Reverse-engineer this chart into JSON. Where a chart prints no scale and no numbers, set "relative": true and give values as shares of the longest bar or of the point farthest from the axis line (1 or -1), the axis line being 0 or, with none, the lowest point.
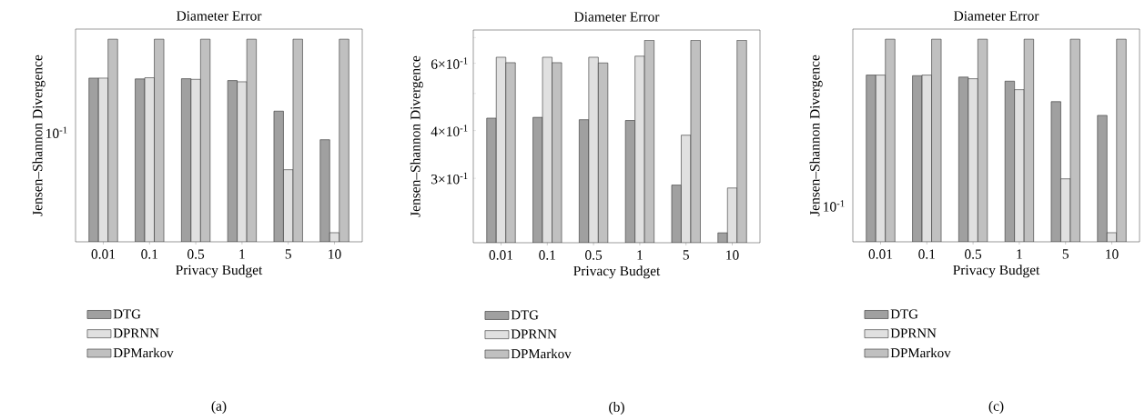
{
  "chart_data": [
    {
      "type": "bar",
      "title": "Diameter Error",
      "xlabel": "Privacy Budget",
      "ylabel": "Jensen–Shannon Divergence",
      "categories": [
        "0.01",
        "0.1",
        "0.5",
        "1",
        "5",
        "10"
      ],
      "relative": true,
      "legend": "bottom",
      "series": [
        {
          "name": "DTG",
          "color": "#a0a0a0",
          "values": [
            0.808,
            0.804,
            0.805,
            0.796,
            0.645,
            0.504
          ]
        },
        {
          "name": "DPRNN",
          "color": "#e0e0e0",
          "values": [
            0.808,
            0.81,
            0.802,
            0.79,
            0.356,
            0.045
          ]
        },
        {
          "name": "DPMarkov",
          "color": "#c0c0c0",
          "values": [
            1,
            1,
            1,
            1,
            1,
            1
          ]
        }
      ],
      "annotations": [
        "10$^{-1}$",
        "(a)"
      ]
    },
    {
      "type": "bar",
      "title": "Diameter Error",
      "xlabel": "Privacy Budget",
      "ylabel": "Jensen–Shannon Divergence",
      "categories": [
        "0.01",
        "0.1",
        "0.5",
        "1",
        "5",
        "10"
      ],
      "log": true,
      "legend": "bottom",
      "ylim": [
        0.2035,
        0.733
      ],
      "yticks": [
        {
          "value": 0.3,
          "label": "3×10$^{-1}$"
        },
        {
          "value": 0.4,
          "label": "4×10$^{-1}$"
        },
        {
          "value": 0.5,
          "label": null
        },
        {
          "value": 0.6,
          "label": "6×10$^{-1}$"
        },
        {
          "value": 0.7,
          "label": null
        }
      ],
      "series": [
        {
          "name": "DTG",
          "color": "#a0a0a0",
          "values": [
            0.431,
            0.433,
            0.427,
            0.425,
            0.288,
            0.216
          ]
        },
        {
          "name": "DPRNN",
          "color": "#e0e0e0",
          "values": [
            0.622,
            0.622,
            0.622,
            0.626,
            0.389,
            0.283
          ]
        },
        {
          "name": "DPMarkov",
          "color": "#c0c0c0",
          "values": [
            0.602,
            0.602,
            0.601,
            0.689,
            0.689,
            0.689
          ]
        }
      ],
      "annotations": [
        "(b)"
      ]
    },
    {
      "type": "bar",
      "title": "Diameter Error",
      "xlabel": "Privacy Budget",
      "ylabel": "Jensen–Shannon Divergence",
      "categories": [
        "0.01",
        "0.1",
        "0.5",
        "1",
        "5",
        "10"
      ],
      "relative": true,
      "legend": "bottom",
      "series": [
        {
          "name": "DTG",
          "color": "#a0a0a0",
          "values": [
            0.823,
            0.82,
            0.813,
            0.793,
            0.692,
            0.624
          ]
        },
        {
          "name": "DPRNN",
          "color": "#e0e0e0",
          "values": [
            0.823,
            0.823,
            0.805,
            0.751,
            0.311,
            0.045
          ]
        },
        {
          "name": "DPMarkov",
          "color": "#c0c0c0",
          "values": [
            1,
            1,
            1,
            1,
            1,
            1
          ]
        }
      ],
      "annotations": [
        "10$^{-1}$",
        "(c)"
      ]
    }
  ]
}
